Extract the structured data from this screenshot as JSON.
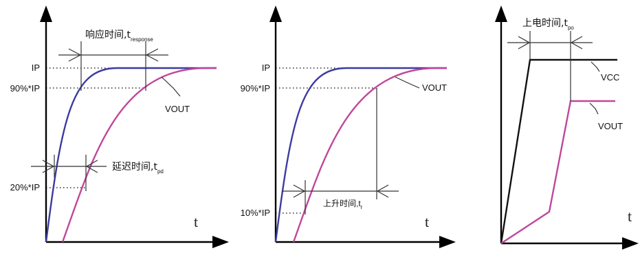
{
  "colors": {
    "input": "#3b3ba0",
    "output": "#c0469b",
    "supply": "#111111"
  },
  "panel1": {
    "ip": "IP",
    "p90": "90%*IP",
    "p20": "20%*IP",
    "vout": "VOUT",
    "t": "t",
    "response_caption": "响应时间,t",
    "response_sub": "response",
    "delay_caption": "延迟时间,t",
    "delay_sub": "pd"
  },
  "panel2": {
    "ip": "IP",
    "p90": "90%*IP",
    "p10": "10%*IP",
    "vout": "VOUT",
    "t": "t",
    "rise_caption": "上升时间,t",
    "rise_sub": "r"
  },
  "panel3": {
    "caption": "上电时间,t",
    "caption_sub": "po",
    "vcc": "VCC",
    "vout": "VOUT",
    "t": "t"
  }
}
